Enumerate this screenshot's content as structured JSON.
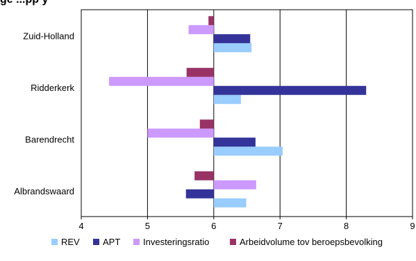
{
  "header": {
    "partial_title": "ge      ...pp   y"
  },
  "chart_data": {
    "type": "bar",
    "orientation": "horizontal",
    "categories": [
      "Zuid-Holland",
      "Ridderkerk",
      "Barendrecht",
      "Albrandswaard"
    ],
    "series": [
      {
        "name": "REV",
        "color": "#99ccff",
        "values": [
          6.57,
          6.41,
          7.04,
          6.49
        ]
      },
      {
        "name": "APT",
        "color": "#333399",
        "values": [
          6.55,
          8.3,
          6.63,
          5.58
        ]
      },
      {
        "name": "Investeringsratio",
        "color": "#cc99ff",
        "values": [
          5.62,
          4.42,
          5.0,
          6.64
        ]
      },
      {
        "name": "Arbeidvolume tov beroepsbevolking",
        "color": "#993366",
        "values": [
          5.92,
          5.59,
          5.79,
          5.71
        ]
      }
    ],
    "bar_origin": 6,
    "xlim": [
      4,
      9
    ],
    "xticks": [
      "4",
      "5",
      "6",
      "7",
      "8",
      "9"
    ],
    "grid": "vertical",
    "legend_position": "bottom"
  }
}
